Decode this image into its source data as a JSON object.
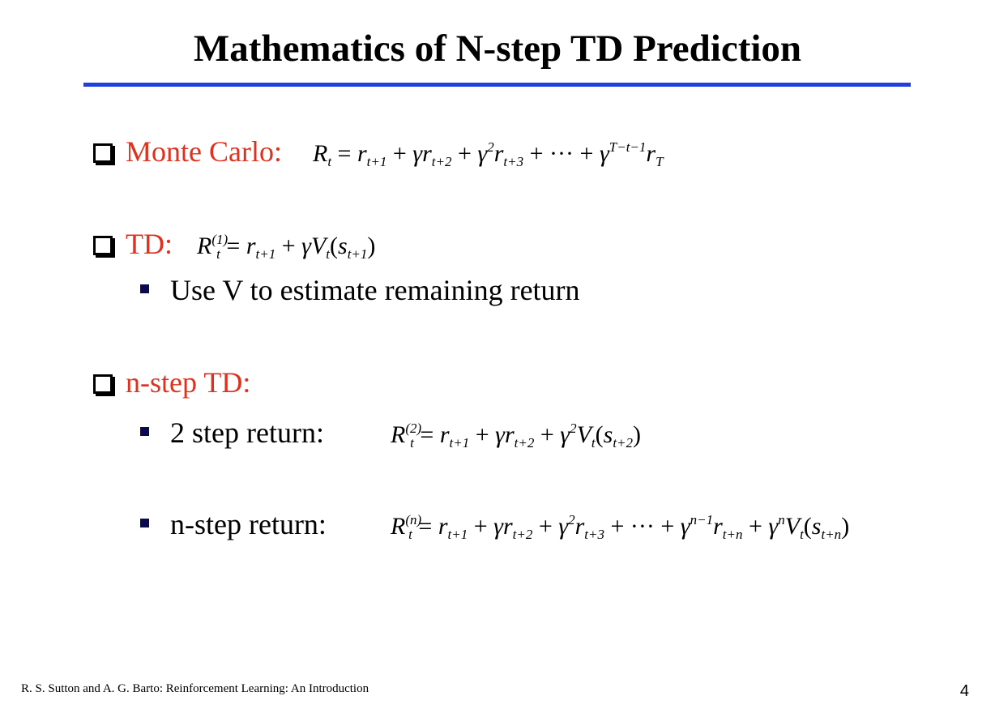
{
  "slide": {
    "title": "Mathematics of N-step TD Prediction",
    "accent_color": "#e0301e",
    "rule_color": "#1f3fe0"
  },
  "items": [
    {
      "label": "Monte Carlo:",
      "formula": "R_t = r_{t+1} + γ r_{t+2} + γ^2 r_{t+3} + ··· + γ^{T−t−1} r_T"
    },
    {
      "label": "TD:",
      "formula": "R_t^{(1)} = r_{t+1} + γ V_t(s_{t+1})",
      "sub": "Use V to estimate remaining return"
    },
    {
      "label": "n-step TD:"
    }
  ],
  "subitems": [
    {
      "label": "2 step return:",
      "formula": "R_t^{(2)} = r_{t+1} + γ r_{t+2} + γ^2 V_t(s_{t+2})"
    },
    {
      "label": "n-step return:",
      "formula": "R_t^{(n)} = r_{t+1} + γ r_{t+2} + γ^2 r_{t+3} + ··· + γ^{n−1} r_{t+n} + γ^n V_t(s_{t+n})"
    }
  ],
  "footer": {
    "citation": "R. S. Sutton and A. G. Barto: Reinforcement Learning: An Introduction",
    "page_number": "4"
  }
}
